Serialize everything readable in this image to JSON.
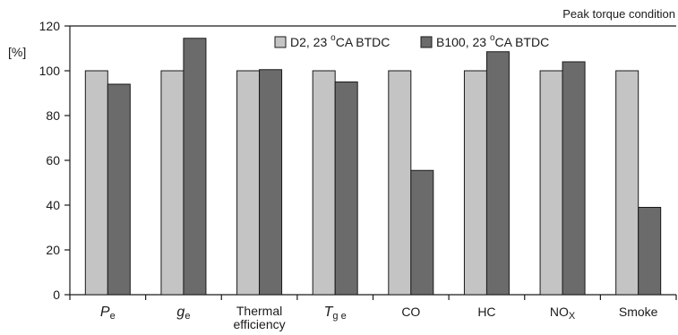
{
  "chart_data": {
    "type": "bar",
    "annotation": "Peak torque condition",
    "ylabel": "[%]",
    "ylim": [
      0,
      120
    ],
    "yticks": [
      0,
      20,
      40,
      60,
      80,
      100,
      120
    ],
    "grid": false,
    "legend_position": "top-center",
    "categories": [
      {
        "main": "P",
        "sub": "e",
        "italic": true
      },
      {
        "main": "g",
        "sub": "e",
        "italic": true
      },
      {
        "main": "Thermal",
        "line2": "efficiency",
        "italic": false
      },
      {
        "main": "T",
        "sub": "g e",
        "italic": true
      },
      {
        "main": "CO",
        "italic": false
      },
      {
        "main": "HC",
        "italic": false
      },
      {
        "main": "NO",
        "sub": "X",
        "italic": false
      },
      {
        "main": "Smoke",
        "italic": false
      }
    ],
    "series": [
      {
        "name": "D2, 23 ",
        "name_sup": "o",
        "name_suffix": "CA BTDC",
        "color": "#c4c4c4",
        "values": [
          100,
          100,
          100,
          100,
          100,
          100,
          100,
          100
        ]
      },
      {
        "name": "B100, 23 ",
        "name_sup": "o",
        "name_suffix": "CA BTDC",
        "color": "#6b6b6b",
        "values": [
          94,
          114.5,
          100.5,
          95,
          55.5,
          108.5,
          104,
          39
        ]
      }
    ]
  }
}
